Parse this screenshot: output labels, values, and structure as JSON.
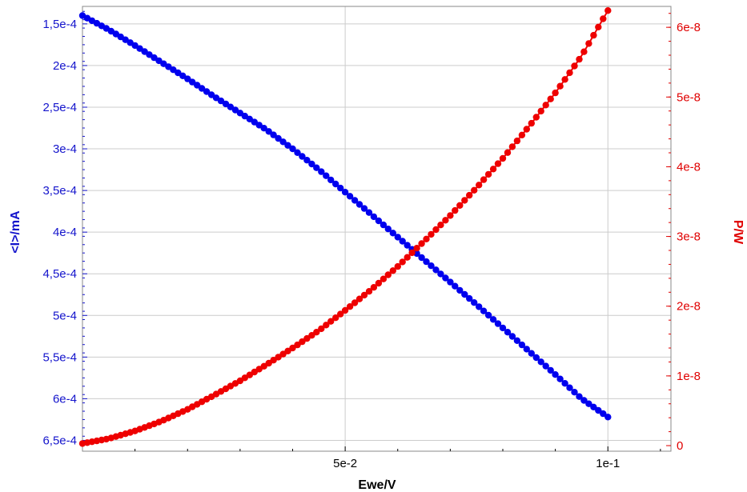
{
  "chart_data": {
    "type": "scatter",
    "xlabel": "Ewe/V",
    "ylabel_left": "<I>/mA",
    "ylabel_right": "P/W",
    "xlim": [
      0,
      0.112
    ],
    "ylim_left": [
      0.000129,
      0.000663
    ],
    "ylim_left_inverted": true,
    "ylim_right": [
      -8e-10,
      6.3e-08
    ],
    "x_ticks": [
      {
        "value": 0.05,
        "label": "5e-2"
      },
      {
        "value": 0.1,
        "label": "1e-1"
      }
    ],
    "y_left_ticks": [
      {
        "value": 0.00015,
        "label": "1,5e-4"
      },
      {
        "value": 0.0002,
        "label": "2e-4"
      },
      {
        "value": 0.00025,
        "label": "2,5e-4"
      },
      {
        "value": 0.0003,
        "label": "3e-4"
      },
      {
        "value": 0.00035,
        "label": "3,5e-4"
      },
      {
        "value": 0.0004,
        "label": "4e-4"
      },
      {
        "value": 0.00045,
        "label": "4,5e-4"
      },
      {
        "value": 0.0005,
        "label": "5e-4"
      },
      {
        "value": 0.00055,
        "label": "5,5e-4"
      },
      {
        "value": 0.0006,
        "label": "6e-4"
      },
      {
        "value": 0.00065,
        "label": "6,5e-4"
      }
    ],
    "y_right_ticks": [
      {
        "value": 0,
        "label": "0"
      },
      {
        "value": 1e-08,
        "label": "1e-8"
      },
      {
        "value": 2e-08,
        "label": "2e-8"
      },
      {
        "value": 3e-08,
        "label": "3e-8"
      },
      {
        "value": 4e-08,
        "label": "4e-8"
      },
      {
        "value": 5e-08,
        "label": "5e-8"
      },
      {
        "value": 6e-08,
        "label": "6e-8"
      }
    ],
    "grid": true,
    "colors": {
      "current": "#0000ee",
      "power": "#ee0000",
      "grid": "#cccccc"
    },
    "series": [
      {
        "axis": "left",
        "x": [
          0.0,
          0.005,
          0.01,
          0.015,
          0.02,
          0.025,
          0.03,
          0.035,
          0.04,
          0.045,
          0.05,
          0.055,
          0.06,
          0.065,
          0.07,
          0.075,
          0.08,
          0.085,
          0.09,
          0.095,
          0.1
        ],
        "y": [
          0.00014,
          0.000157,
          0.000176,
          0.000196,
          0.000216,
          0.000237,
          0.000257,
          0.000277,
          0.0003,
          0.000325,
          0.000352,
          0.000379,
          0.000406,
          0.000433,
          0.00046,
          0.000487,
          0.000515,
          0.000543,
          0.000571,
          0.0006,
          0.000622
        ]
      },
      {
        "axis": "right",
        "x": [
          0.0,
          0.005,
          0.01,
          0.015,
          0.02,
          0.025,
          0.03,
          0.035,
          0.04,
          0.045,
          0.05,
          0.055,
          0.06,
          0.065,
          0.07,
          0.075,
          0.08,
          0.085,
          0.09,
          0.095,
          0.1
        ],
        "y": [
          3e-10,
          1e-09,
          2.1e-09,
          3.5e-09,
          5.2e-09,
          7.2e-09,
          9.3e-09,
          1.16e-08,
          1.4e-08,
          1.65e-08,
          1.94e-08,
          2.24e-08,
          2.57e-08,
          2.93e-08,
          3.3e-08,
          3.7e-08,
          4.12e-08,
          4.58e-08,
          5.06e-08,
          5.59e-08,
          6.24e-08
        ]
      }
    ]
  }
}
